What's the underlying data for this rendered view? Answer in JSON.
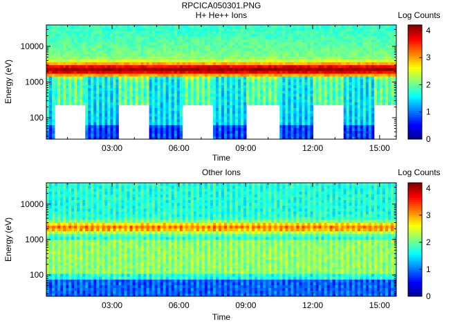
{
  "title": "RPCICA050301.PNG",
  "colormap": [
    "#00008f",
    "#0000ff",
    "#0080ff",
    "#00ffff",
    "#80ff80",
    "#ffff00",
    "#ff8000",
    "#ff0000",
    "#800000"
  ],
  "chart_data": [
    {
      "type": "heatmap",
      "title": "H+ He++ Ions",
      "xlabel": "Time",
      "ylabel": "Energy (eV)",
      "xticks": [
        "03:00",
        "06:00",
        "09:00",
        "12:00",
        "15:00"
      ],
      "xtick_hours": [
        3,
        6,
        9,
        12,
        15
      ],
      "xlim_hours": [
        0.05,
        15.75
      ],
      "yscale": "log",
      "ylim": [
        25,
        40000
      ],
      "yticks": [
        100,
        1000,
        10000
      ],
      "ytick_labels": [
        "100",
        "1000",
        "10000"
      ],
      "colorbar": {
        "label": "Log Counts",
        "min": 0,
        "max": 4.2,
        "ticks": [
          0,
          1,
          2,
          3,
          4
        ],
        "tick_labels": [
          "0",
          "1",
          "2",
          "3",
          "4"
        ]
      },
      "peak_energy_ev": 2300,
      "low_energy_gap_intervals_hours": [
        [
          0.4,
          1.85
        ],
        [
          3.25,
          4.7
        ],
        [
          6.15,
          7.55
        ],
        [
          9.0,
          10.5
        ],
        [
          12.0,
          13.4
        ],
        [
          14.8,
          15.75
        ]
      ]
    },
    {
      "type": "heatmap",
      "title": "Other Ions",
      "xlabel": "Time",
      "ylabel": "Energy (eV)",
      "xticks": [
        "03:00",
        "06:00",
        "09:00",
        "12:00",
        "15:00"
      ],
      "xtick_hours": [
        3,
        6,
        9,
        12,
        15
      ],
      "xlim_hours": [
        0.05,
        15.75
      ],
      "yscale": "log",
      "ylim": [
        25,
        40000
      ],
      "yticks": [
        100,
        1000,
        10000
      ],
      "ytick_labels": [
        "100",
        "1000",
        "10000"
      ],
      "colorbar": {
        "label": "Log Counts",
        "min": 0,
        "max": 4.2,
        "ticks": [
          0,
          1,
          2,
          3,
          4
        ],
        "tick_labels": [
          "0",
          "1",
          "2",
          "3",
          "4"
        ]
      },
      "peak_energy_ev": 2200
    }
  ]
}
